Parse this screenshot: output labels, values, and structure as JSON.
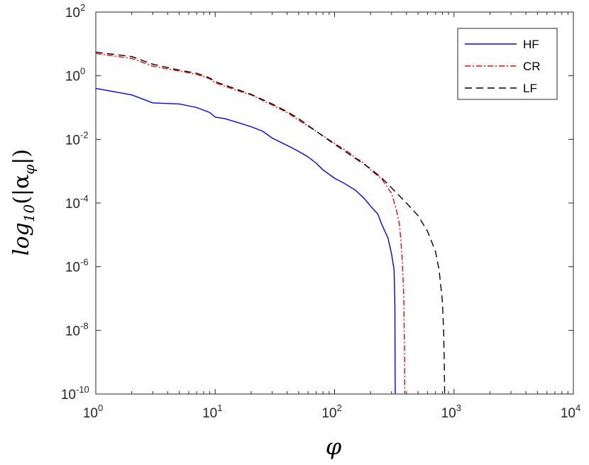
{
  "chart_data": {
    "type": "line",
    "xscale": "log",
    "yscale": "log",
    "xlim": [
      1,
      10000
    ],
    "ylim": [
      1e-10,
      100
    ],
    "xlabel": "φ",
    "ylabel": "log10(|αφ|)",
    "ylabel_parts": {
      "prefix": "log",
      "sub": "10",
      "open": "(|α",
      "sub2": "φ",
      "close": "|)"
    },
    "xticks": [
      {
        "value": 1,
        "base": "10",
        "exp": "0"
      },
      {
        "value": 10,
        "base": "10",
        "exp": "1"
      },
      {
        "value": 100,
        "base": "10",
        "exp": "2"
      },
      {
        "value": 1000,
        "base": "10",
        "exp": "3"
      },
      {
        "value": 10000,
        "base": "10",
        "exp": "4"
      }
    ],
    "yticks": [
      {
        "value": 1e-10,
        "base": "10",
        "exp": "-10"
      },
      {
        "value": 1e-08,
        "base": "10",
        "exp": "-8"
      },
      {
        "value": 1e-06,
        "base": "10",
        "exp": "-6"
      },
      {
        "value": 0.0001,
        "base": "10",
        "exp": "-4"
      },
      {
        "value": 0.01,
        "base": "10",
        "exp": "-2"
      },
      {
        "value": 1,
        "base": "10",
        "exp": "0"
      },
      {
        "value": 100,
        "base": "10",
        "exp": "2"
      }
    ],
    "grid": false,
    "legend_position": "top-right",
    "series": [
      {
        "name": "HF",
        "color": "#0000ff",
        "dash": "solid",
        "x": [
          1,
          2,
          3,
          5,
          7,
          9,
          10,
          12,
          15,
          20,
          25,
          30,
          40,
          50,
          60,
          70,
          80,
          100,
          120,
          150,
          180,
          200,
          230,
          250,
          280,
          300,
          315,
          320,
          321,
          322
        ],
        "y": [
          0.4,
          0.25,
          0.14,
          0.13,
          0.1,
          0.07,
          0.05,
          0.045,
          0.035,
          0.025,
          0.018,
          0.011,
          0.0065,
          0.0042,
          0.0028,
          0.0018,
          0.0011,
          0.0006,
          0.00042,
          0.00025,
          0.00013,
          8e-05,
          4.5e-05,
          2e-05,
          8e-06,
          2.5e-06,
          8e-07,
          5e-08,
          1e-09,
          1e-10
        ]
      },
      {
        "name": "CR",
        "color": "#ff0000",
        "dash": "dashdot",
        "x": [
          1,
          2,
          3,
          5,
          7,
          9,
          10,
          15,
          20,
          30,
          40,
          50,
          70,
          100,
          130,
          150,
          170,
          200,
          250,
          300,
          330,
          350,
          360,
          370,
          380,
          385,
          387
        ],
        "y": [
          5,
          3.5,
          2,
          1.4,
          1.1,
          0.8,
          0.6,
          0.35,
          0.25,
          0.12,
          0.07,
          0.04,
          0.018,
          0.0075,
          0.004,
          0.0026,
          0.002,
          0.0011,
          0.00055,
          0.0002,
          6e-05,
          2e-05,
          6e-06,
          1.2e-06,
          1e-07,
          2e-09,
          1e-10
        ]
      },
      {
        "name": "LF",
        "color": "#000000",
        "dash": "dashed",
        "x": [
          1,
          2,
          3,
          5,
          7,
          9,
          10,
          15,
          20,
          30,
          40,
          50,
          70,
          100,
          150,
          200,
          250,
          300,
          400,
          500,
          600,
          700,
          750,
          800,
          820,
          830,
          835
        ],
        "y": [
          5.5,
          4,
          2.3,
          1.5,
          1.2,
          0.85,
          0.65,
          0.38,
          0.26,
          0.13,
          0.075,
          0.045,
          0.018,
          0.007,
          0.0025,
          0.0012,
          0.0006,
          0.0003,
          0.0001,
          4e-05,
          1.3e-05,
          3e-06,
          8e-07,
          8e-08,
          8e-09,
          8e-10,
          1e-10
        ]
      }
    ]
  }
}
